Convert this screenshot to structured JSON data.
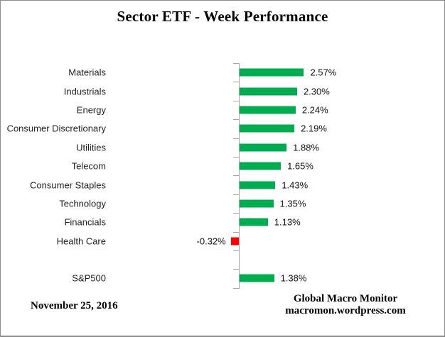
{
  "title": "Sector ETF - Week Performance",
  "footer": {
    "date": "November 25, 2016",
    "source_name": "Global Macro Monitor",
    "source_url": "macromon.wordpress.com"
  },
  "colors": {
    "positive_bar": "#00AC50",
    "negative_bar": "#FF0000",
    "axis": "#A6A6A6",
    "border": "#8C8C8C",
    "background": "#FFFFFF"
  },
  "chart_data": {
    "type": "bar",
    "orientation": "horizontal",
    "title": "Sector ETF - Week Performance",
    "xlabel": "",
    "ylabel": "",
    "grid": false,
    "legend": "none",
    "axis_value_labels_visible": false,
    "xlim": [
      -0.5,
      3.0
    ],
    "categories": [
      "Materials",
      "Industrials",
      "Energy",
      "Consumer Discretionary",
      "Utilities",
      "Telecom",
      "Consumer Staples",
      "Technology",
      "Financials",
      "Health Care",
      "S&P500"
    ],
    "values": [
      2.57,
      2.3,
      2.24,
      2.19,
      1.88,
      1.65,
      1.43,
      1.35,
      1.13,
      -0.32,
      1.38
    ],
    "value_labels": [
      "2.57%",
      "2.30%",
      "2.24%",
      "2.19%",
      "1.88%",
      "1.65%",
      "1.43%",
      "1.35%",
      "1.13%",
      "-0.32%",
      "1.38%"
    ],
    "separator_after": "Health Care",
    "positive_color": "#00AC50",
    "negative_color": "#FF0000"
  }
}
